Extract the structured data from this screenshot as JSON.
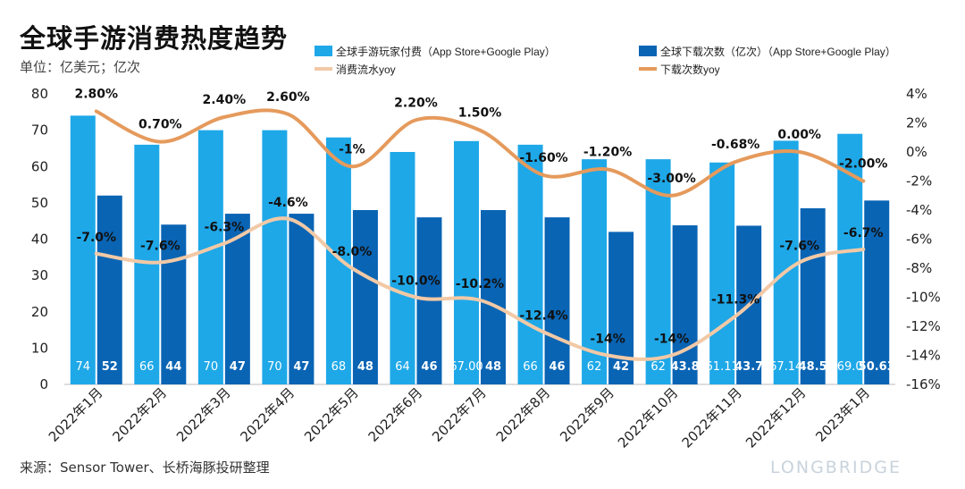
{
  "title": "全球手游消费热度趋势",
  "unit": "单位：亿美元；亿次",
  "source": "来源：Sensor Tower、长桥海豚投研整理",
  "watermark": "LONGBRIDGE",
  "colors": {
    "revenue_bar": "#1ea8e8",
    "download_bar": "#0a64b4",
    "revenue_yoy_line": "#f2c9a6",
    "download_yoy_line": "#e59a5c",
    "text": "#111111"
  },
  "chart_data": {
    "type": "bar",
    "categories": [
      "2022年1月",
      "2022年2月",
      "2022年3月",
      "2022年4月",
      "2022年5月",
      "2022年6月",
      "2022年7月",
      "2022年8月",
      "2022年9月",
      "2022年10月",
      "2022年11月",
      "2022年12月",
      "2023年1月"
    ],
    "left_axis": {
      "ylim": [
        0,
        80
      ],
      "ticks": [
        "0",
        "10",
        "20",
        "30",
        "40",
        "50",
        "60",
        "70",
        "80"
      ]
    },
    "right_axis": {
      "ylim": [
        -16,
        4
      ],
      "ticks": [
        "4%",
        "2%",
        "0%",
        "-2%",
        "-4%",
        "-6%",
        "-8%",
        "-10%",
        "-12%",
        "-14%",
        "-16%"
      ]
    },
    "series": [
      {
        "name": "全球手游玩家付费（App Store+Google Play）",
        "type": "bar",
        "axis": "left",
        "values": [
          74,
          66,
          70,
          70,
          68,
          64,
          67,
          66,
          62,
          62,
          61.1,
          67.1,
          69
        ],
        "labels": [
          "74",
          "66",
          "70",
          "70",
          "68",
          "64",
          "67.00",
          "66",
          "62",
          "62",
          "61.11",
          "67.14",
          "69.0"
        ]
      },
      {
        "name": "全球下载次数（亿次）（App Store+Google Play）",
        "type": "bar",
        "axis": "left",
        "values": [
          52,
          44,
          47,
          47,
          48,
          46,
          48,
          46,
          42,
          43.8,
          43.7,
          48.5,
          50.63
        ],
        "labels": [
          "52",
          "44",
          "47",
          "47",
          "48",
          "46",
          "48",
          "46",
          "42",
          "43.8",
          "43.7",
          "48.5",
          "50.63"
        ]
      },
      {
        "name": "消费流水yoy",
        "type": "line",
        "axis": "right",
        "values": [
          -7.0,
          -7.6,
          -6.3,
          -4.6,
          -8.0,
          -10.0,
          -10.2,
          -12.4,
          -14,
          -14,
          -11.3,
          -7.6,
          -6.7
        ],
        "labels": [
          "-7.0%",
          "-7.6%",
          "-6.3%",
          "-4.6%",
          "-8.0%",
          "-10.0%",
          "-10.2%",
          "-12.4%",
          "-14%",
          "-14%",
          "-11.3%",
          "-7.6%",
          "-6.7%"
        ]
      },
      {
        "name": "下载次数yoy",
        "type": "line",
        "axis": "right",
        "values": [
          2.8,
          0.7,
          2.4,
          2.6,
          -1,
          2.2,
          1.5,
          -1.6,
          -1.2,
          -3.0,
          -0.68,
          0.0,
          -2.0
        ],
        "labels": [
          "2.80%",
          "0.70%",
          "2.40%",
          "2.60%",
          "-1%",
          "2.20%",
          "1.50%",
          "-1.60%",
          "-1.20%",
          "-3.00%",
          "-0.68%",
          "0.00%",
          "-2.00%"
        ]
      }
    ],
    "legend_position": "top"
  }
}
